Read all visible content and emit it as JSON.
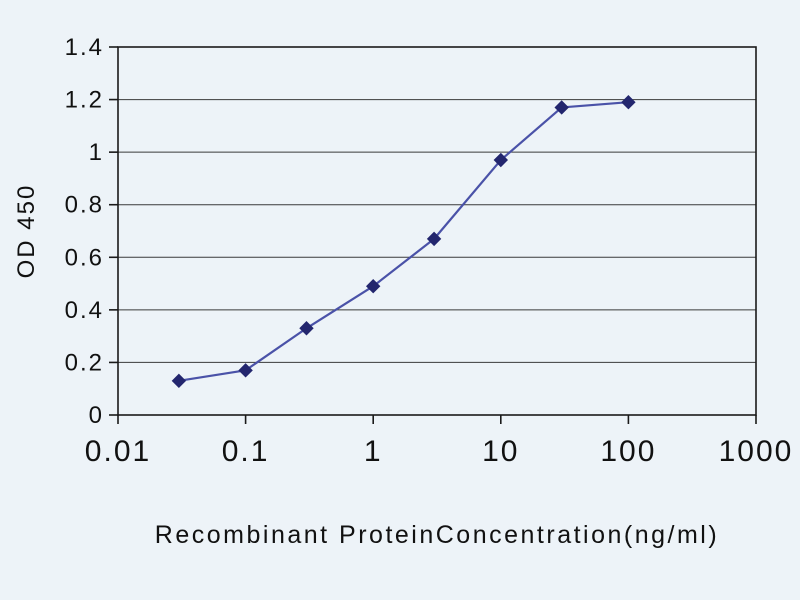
{
  "chart_data": {
    "type": "line",
    "title": "",
    "xlabel": "Recombinant ProteinConcentration(ng/ml)",
    "ylabel": "OD 450",
    "x_scale": "log",
    "x": [
      0.03,
      0.1,
      0.3,
      1,
      3,
      10,
      30,
      100
    ],
    "y": [
      0.13,
      0.17,
      0.33,
      0.49,
      0.67,
      0.97,
      1.17,
      1.19
    ],
    "xlim": [
      0.01,
      1000
    ],
    "ylim": [
      0,
      1.4
    ],
    "x_ticks": [
      0.01,
      0.1,
      1,
      10,
      100,
      1000
    ],
    "x_tick_labels": [
      "0.01",
      "0.1",
      "1",
      "10",
      "100",
      "1000"
    ],
    "y_ticks": [
      0,
      0.2,
      0.4,
      0.6,
      0.8,
      1,
      1.2,
      1.4
    ],
    "y_tick_labels": [
      "0",
      "0.2",
      "0.4",
      "0.6",
      "0.8",
      "1",
      "1.2",
      "1.4"
    ],
    "grid": "horizontal",
    "legend": "none",
    "marker": "diamond",
    "colors": {
      "line": "#4a52a8",
      "marker": "#23266e",
      "axis": "#1a1a1a",
      "grid": "#3a3a3a",
      "background": "#edf3f8",
      "text": "#111111"
    }
  }
}
